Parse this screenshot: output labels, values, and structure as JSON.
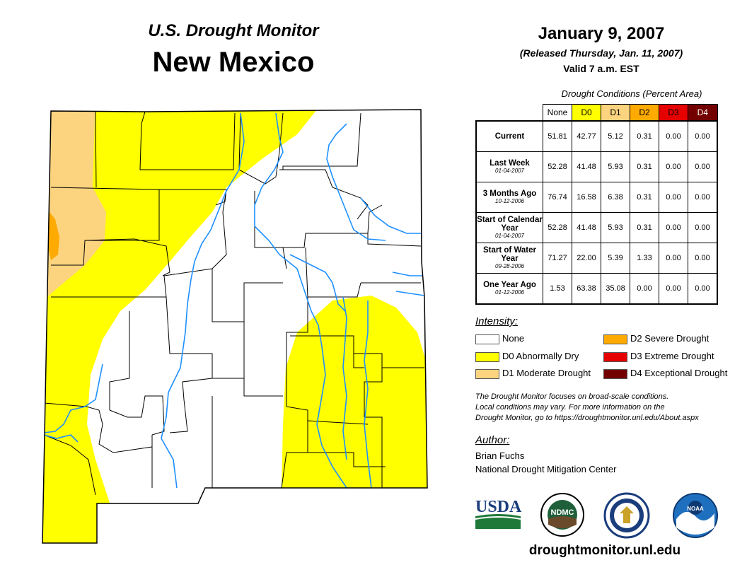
{
  "header": {
    "subtitle": "U.S. Drought Monitor",
    "title": "New Mexico",
    "date": "January 9, 2007",
    "released": "(Released Thursday, Jan. 11, 2007)",
    "valid": "Valid 7 a.m. EST"
  },
  "table": {
    "caption": "Drought Conditions (Percent Area)",
    "columns": [
      "None",
      "D0",
      "D1",
      "D2",
      "D3",
      "D4"
    ],
    "column_colors": [
      "#ffffff",
      "#ffff00",
      "#fcd37f",
      "#ffaa00",
      "#e60000",
      "#730000"
    ],
    "rows": [
      {
        "label": "Current",
        "date": "",
        "values": [
          "51.81",
          "42.77",
          "5.12",
          "0.31",
          "0.00",
          "0.00"
        ]
      },
      {
        "label": "Last Week",
        "date": "01-04-2007",
        "values": [
          "52.28",
          "41.48",
          "5.93",
          "0.31",
          "0.00",
          "0.00"
        ]
      },
      {
        "label": "3 Months Ago",
        "date": "10-12-2006",
        "values": [
          "76.74",
          "16.58",
          "6.38",
          "0.31",
          "0.00",
          "0.00"
        ]
      },
      {
        "label": "Start of Calendar Year",
        "date": "01-04-2007",
        "values": [
          "52.28",
          "41.48",
          "5.93",
          "0.31",
          "0.00",
          "0.00"
        ]
      },
      {
        "label": "Start of Water Year",
        "date": "09-28-2006",
        "values": [
          "71.27",
          "22.00",
          "5.39",
          "1.33",
          "0.00",
          "0.00"
        ]
      },
      {
        "label": "One Year Ago",
        "date": "01-12-2006",
        "values": [
          "1.53",
          "63.38",
          "35.08",
          "0.00",
          "0.00",
          "0.00"
        ]
      }
    ]
  },
  "legend": {
    "title": "Intensity:",
    "items": [
      {
        "label": "None",
        "color": "#ffffff"
      },
      {
        "label": "D0 Abnormally Dry",
        "color": "#ffff00"
      },
      {
        "label": "D1 Moderate Drought",
        "color": "#fcd37f"
      },
      {
        "label": "D2 Severe Drought",
        "color": "#ffaa00"
      },
      {
        "label": "D3 Extreme Drought",
        "color": "#e60000"
      },
      {
        "label": "D4 Exceptional Drought",
        "color": "#730000"
      }
    ]
  },
  "disclaimer": {
    "line1": "The Drought Monitor focuses on broad-scale conditions.",
    "line2": "Local conditions may vary. For more information on the",
    "line3": "Drought Monitor, go to https://droughtmonitor.unl.edu/About.aspx"
  },
  "author": {
    "title": "Author:",
    "name": "Brian Fuchs",
    "org": "National Drought Mitigation Center"
  },
  "logos": {
    "usda": "USDA",
    "ndmc": "NDMC",
    "noaa": "NOAA"
  },
  "website": "droughtmonitor.unl.edu",
  "map_colors": {
    "none": "#ffffff",
    "d0": "#ffff00",
    "d1": "#fcd37f",
    "d2": "#ffaa00",
    "river": "#1e90ff",
    "border": "#000000"
  }
}
